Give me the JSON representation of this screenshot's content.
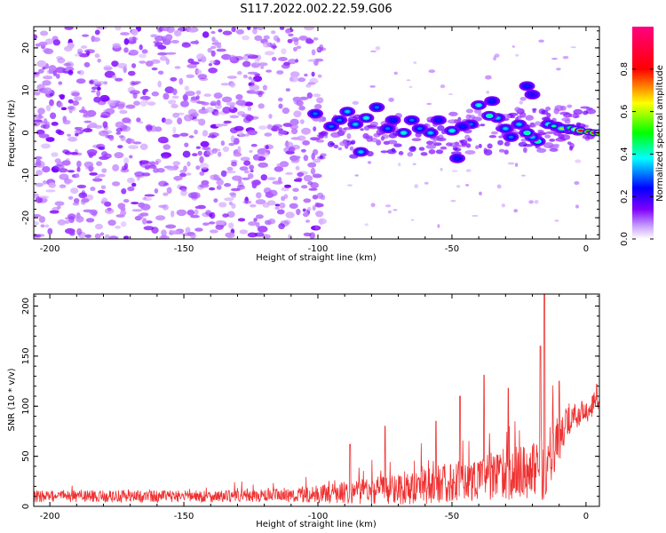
{
  "title": "S117.2022.002.22.59.G06",
  "chart_data": [
    {
      "type": "heatmap",
      "xlabel": "Height of straight line (km)",
      "ylabel": "Frequency (Hz)",
      "xlim": [
        -206,
        5
      ],
      "ylim": [
        -25,
        25
      ],
      "xticks": [
        -200,
        -150,
        -100,
        -50,
        0
      ],
      "yticks": [
        -20,
        -10,
        0,
        10,
        20
      ],
      "xtick_labels": [
        "-200",
        "-150",
        "-100",
        "-50",
        "0"
      ],
      "ytick_labels": [
        "-20",
        "-10",
        "0",
        "10",
        "20"
      ],
      "colorbar": {
        "label": "Normalized spectral amplitude",
        "range": [
          0,
          1
        ],
        "ticks": [
          0,
          0.2,
          0.4,
          0.6,
          0.8
        ],
        "tick_labels": [
          "0.0",
          "0.2",
          "0.4",
          "0.6",
          "0.8"
        ],
        "colormap": [
          "#ffffff",
          "#7f00ff",
          "#0000ff",
          "#00ffff",
          "#00ff00",
          "#ffff00",
          "#ff0000",
          "#ff0080"
        ]
      },
      "grid": false,
      "noise_region_x": [
        -206,
        -98
      ],
      "signal_blobs": [
        {
          "x": -3,
          "y": 0.5,
          "v": 1.0
        },
        {
          "x": -6,
          "y": 0.8,
          "v": 0.8
        },
        {
          "x": -9,
          "y": 1.0,
          "v": 0.7
        },
        {
          "x": -11,
          "y": 1.5,
          "v": 0.6
        },
        {
          "x": -14,
          "y": 2.0,
          "v": 0.45
        },
        {
          "x": -18,
          "y": -2.0,
          "v": 0.5
        },
        {
          "x": -20,
          "y": -1.0,
          "v": 0.4
        },
        {
          "x": -22,
          "y": 0.0,
          "v": 0.5
        },
        {
          "x": -25,
          "y": 2.0,
          "v": 0.4
        },
        {
          "x": -28,
          "y": -1.0,
          "v": 0.35
        },
        {
          "x": -30,
          "y": 1.0,
          "v": 0.4
        },
        {
          "x": -33,
          "y": 3.5,
          "v": 0.4
        },
        {
          "x": -36,
          "y": 4.0,
          "v": 0.5
        },
        {
          "x": -40,
          "y": 6.5,
          "v": 0.45
        },
        {
          "x": -43,
          "y": 2.0,
          "v": 0.35
        },
        {
          "x": -46,
          "y": 1.5,
          "v": 0.3
        },
        {
          "x": -50,
          "y": 0.5,
          "v": 0.45
        },
        {
          "x": -55,
          "y": 3.0,
          "v": 0.3
        },
        {
          "x": -58,
          "y": 0.0,
          "v": 0.4
        },
        {
          "x": -62,
          "y": 1.0,
          "v": 0.35
        },
        {
          "x": -65,
          "y": 3.0,
          "v": 0.35
        },
        {
          "x": -68,
          "y": 0.0,
          "v": 0.45
        },
        {
          "x": -72,
          "y": 3.0,
          "v": 0.3
        },
        {
          "x": -74,
          "y": 1.0,
          "v": 0.35
        },
        {
          "x": -78,
          "y": 6.0,
          "v": 0.35
        },
        {
          "x": -82,
          "y": 3.5,
          "v": 0.45
        },
        {
          "x": -84,
          "y": -4.5,
          "v": 0.4
        },
        {
          "x": -86,
          "y": 2.0,
          "v": 0.4
        },
        {
          "x": -89,
          "y": 5.0,
          "v": 0.4
        },
        {
          "x": -92,
          "y": 3.0,
          "v": 0.35
        },
        {
          "x": -95,
          "y": 1.5,
          "v": 0.35
        },
        {
          "x": -101,
          "y": 4.5,
          "v": 0.35
        },
        {
          "x": -48,
          "y": -6.0,
          "v": 0.3
        },
        {
          "x": -35,
          "y": 7.5,
          "v": 0.3
        },
        {
          "x": -22,
          "y": 11.0,
          "v": 0.3
        },
        {
          "x": -20,
          "y": 9.0,
          "v": 0.25
        }
      ]
    },
    {
      "type": "line",
      "xlabel": "Height of straight line (km)",
      "ylabel": "SNR (10 * v/v)",
      "xlim": [
        -206,
        5
      ],
      "ylim": [
        0,
        212
      ],
      "xticks": [
        -200,
        -150,
        -100,
        -50,
        0
      ],
      "yticks": [
        0,
        50,
        100,
        150,
        200
      ],
      "xtick_labels": [
        "-200",
        "-150",
        "-100",
        "-50",
        "0"
      ],
      "ytick_labels": [
        "0",
        "50",
        "100",
        "150",
        "200"
      ],
      "line_color": "#ef3030",
      "grid": false,
      "series": [
        {
          "x": [
            -206,
            -190,
            -170,
            -150,
            -130,
            -110,
            -100,
            -90,
            -80,
            -70,
            -60,
            -50,
            -40,
            -30,
            -20,
            -16,
            -12,
            -8,
            -4,
            0,
            5
          ],
          "baseline": [
            10,
            10,
            10,
            10,
            10,
            11,
            12,
            14,
            16,
            18,
            20,
            24,
            28,
            32,
            36,
            40,
            55,
            80,
            90,
            95,
            105
          ],
          "amplitude": [
            6,
            6,
            6,
            6,
            6,
            7,
            9,
            11,
            14,
            16,
            18,
            20,
            22,
            26,
            28,
            35,
            30,
            18,
            14,
            12,
            10
          ],
          "peaks": [
            {
              "x": -15.5,
              "y": 212
            },
            {
              "x": -17,
              "y": 160
            },
            {
              "x": -38,
              "y": 131
            },
            {
              "x": -47,
              "y": 110
            },
            {
              "x": -56,
              "y": 85
            },
            {
              "x": -75,
              "y": 80
            },
            {
              "x": -88,
              "y": 62
            },
            {
              "x": -29,
              "y": 118
            },
            {
              "x": -10,
              "y": 125
            },
            {
              "x": 4,
              "y": 122
            }
          ]
        }
      ]
    }
  ]
}
